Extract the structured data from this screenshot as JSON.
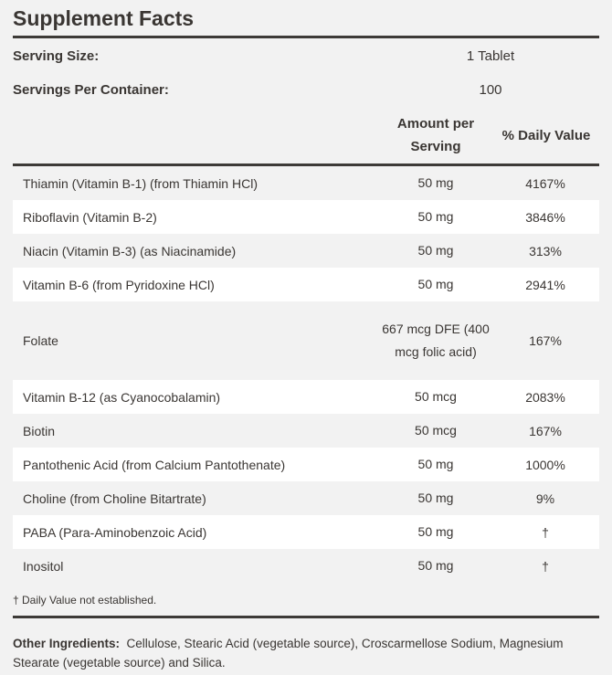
{
  "title": "Supplement Facts",
  "serving_size": {
    "label": "Serving Size:",
    "value": "1 Tablet"
  },
  "servings_per_container": {
    "label": "Servings Per Container:",
    "value": "100"
  },
  "headers": {
    "amount": "Amount per Serving",
    "daily_value": "% Daily Value"
  },
  "rows": [
    {
      "name": "Thiamin (Vitamin B-1) (from Thiamin HCl)",
      "amount": "50 mg",
      "dv": "4167%"
    },
    {
      "name": "Riboflavin (Vitamin B-2)",
      "amount": "50 mg",
      "dv": "3846%"
    },
    {
      "name": "Niacin (Vitamin B-3) (as Niacinamide)",
      "amount": "50 mg",
      "dv": "313%"
    },
    {
      "name": "Vitamin B-6 (from Pyridoxine HCl)",
      "amount": "50 mg",
      "dv": "2941%"
    },
    {
      "name": "Folate",
      "amount": "667 mcg DFE (400 mcg folic acid)",
      "dv": "167%"
    },
    {
      "name": "Vitamin B-12 (as Cyanocobalamin)",
      "amount": "50 mcg",
      "dv": "2083%"
    },
    {
      "name": "Biotin",
      "amount": "50 mcg",
      "dv": "167%"
    },
    {
      "name": "Pantothenic Acid (from Calcium Pantothenate)",
      "amount": "50 mg",
      "dv": "1000%"
    },
    {
      "name": "Choline (from Choline Bitartrate)",
      "amount": "50 mg",
      "dv": "9%"
    },
    {
      "name": "PABA (Para-Aminobenzoic Acid)",
      "amount": "50 mg",
      "dv": "†"
    },
    {
      "name": "Inositol",
      "amount": "50 mg",
      "dv": "†"
    }
  ],
  "footnote": "† Daily Value not established.",
  "other_ingredients": {
    "label": "Other Ingredients:",
    "text": "Cellulose, Stearic Acid (vegetable source), Croscarmellose Sodium, Magnesium Stearate (vegetable source) and Silica."
  },
  "colors": {
    "text": "#3a3633",
    "background": "#f2f2f2",
    "alt_row": "#ffffff",
    "rule": "#3d3a37"
  }
}
